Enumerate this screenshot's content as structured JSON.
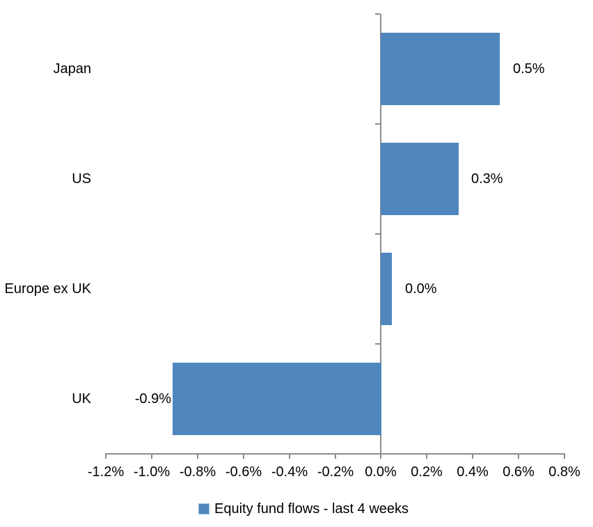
{
  "chart_data": {
    "type": "bar",
    "orientation": "horizontal",
    "title": "",
    "xlabel": "",
    "ylabel": "",
    "categories": [
      "Japan",
      "US",
      "Europe ex UK",
      "UK"
    ],
    "values": [
      0.52,
      0.34,
      0.05,
      -0.91
    ],
    "data_labels": [
      "0.5%",
      "0.3%",
      "0.0%",
      "-0.9%"
    ],
    "series_name": "Equity fund flows - last 4 weeks",
    "xlim": [
      -1.2,
      0.8
    ],
    "x_tick_values": [
      -1.2,
      -1.0,
      -0.8,
      -0.6,
      -0.4,
      -0.2,
      0.0,
      0.2,
      0.4,
      0.6,
      0.8
    ],
    "x_tick_labels": [
      "-1.2%",
      "-1.0%",
      "-0.8%",
      "-0.6%",
      "-0.4%",
      "-0.2%",
      "0.0%",
      "0.2%",
      "0.4%",
      "0.6%",
      "0.8%"
    ],
    "grid": false,
    "legend_position": "bottom",
    "colors": {
      "bar_fill": "#4E86BD",
      "legend_swatch_border": "#9FBEDD",
      "axis_line": "#8C8C8C",
      "text": "#000000",
      "background": "#FFFFFF"
    }
  }
}
